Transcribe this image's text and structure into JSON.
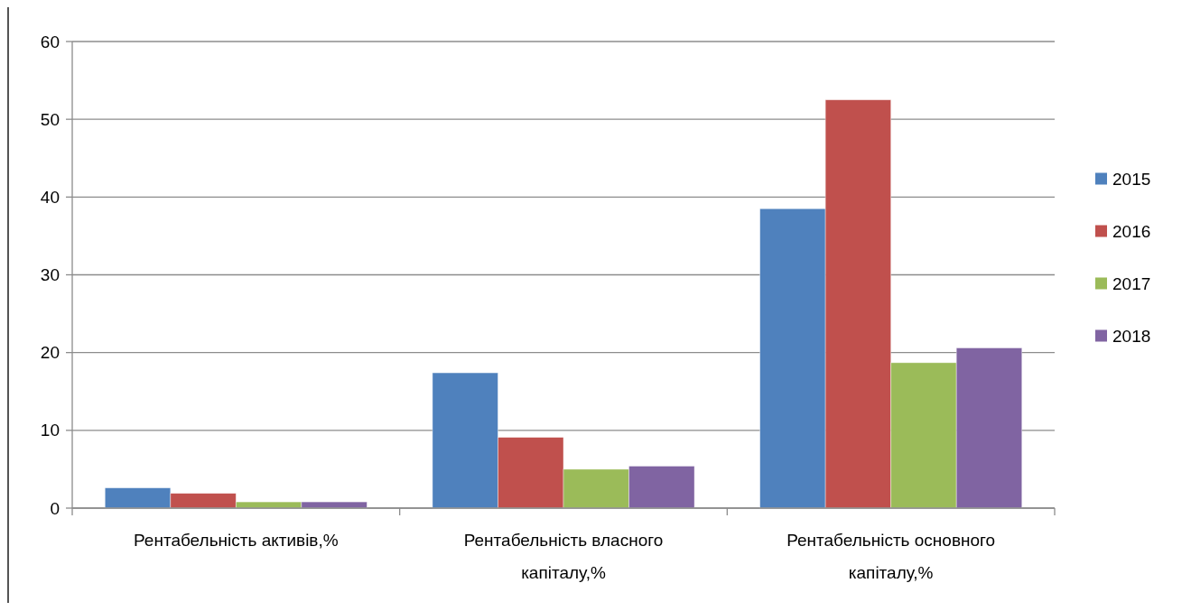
{
  "chart_data": {
    "type": "bar",
    "categories": [
      "Рентабельність активів,%",
      "Рентабельність власного капіталу,%",
      "Рентабельність основного капіталу,%"
    ],
    "series": [
      {
        "name": "2015",
        "color": "#4f81bd",
        "values": [
          2.6,
          17.4,
          38.5
        ]
      },
      {
        "name": "2016",
        "color": "#c0504d",
        "values": [
          1.9,
          9.1,
          52.5
        ]
      },
      {
        "name": "2017",
        "color": "#9bbb59",
        "values": [
          0.8,
          5.0,
          18.7
        ]
      },
      {
        "name": "2018",
        "color": "#8064a2",
        "values": [
          0.8,
          5.4,
          20.6
        ]
      }
    ],
    "ylim": [
      0,
      60
    ],
    "yticks": [
      0,
      10,
      20,
      30,
      40,
      50,
      60
    ],
    "grid": "y",
    "legend": "right"
  }
}
